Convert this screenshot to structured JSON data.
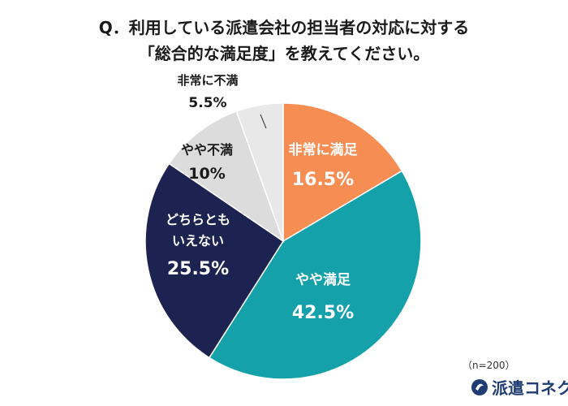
{
  "title_line1": "Q．利用している派遣会社の担当者の対応に対する",
  "title_line2": "「総合的な満足度」を教えてください。",
  "sample_note": "（n=200）",
  "brand": "派遣コネクト",
  "chart_data": {
    "type": "pie",
    "start_angle_deg": 0,
    "direction": "clockwise",
    "slices": [
      {
        "label": "非常に満足",
        "value": 16.5,
        "display": "16.5%",
        "color": "#f68d53",
        "text_color": "#ffffff"
      },
      {
        "label": "やや満足",
        "value": 42.5,
        "display": "42.5%",
        "color": "#14a1a9",
        "text_color": "#ffffff"
      },
      {
        "label": "どちらともいえない",
        "value": 25.5,
        "display": "25.5%",
        "color": "#1d2350",
        "text_color": "#ffffff"
      },
      {
        "label": "やや不満",
        "value": 10,
        "display": "10%",
        "color": "#dcdcdc",
        "text_color": "#1a1a1a"
      },
      {
        "label": "非常に不満",
        "value": 5.5,
        "display": "5.5%",
        "color": "#e8e8e8",
        "text_color": "#1a1a1a"
      }
    ]
  }
}
